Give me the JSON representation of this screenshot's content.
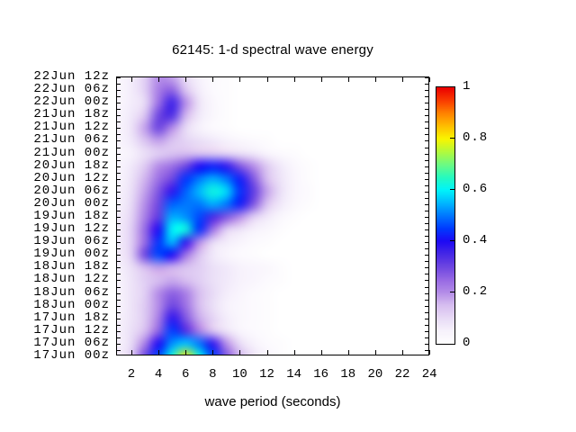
{
  "title": "62145: 1-d spectral wave energy",
  "xlabel": "wave period (seconds)",
  "colors": {
    "background": "#ffffff",
    "axis": "#000000",
    "text": "#000000"
  },
  "chart_data": {
    "type": "heatmap",
    "title": "62145: 1-d spectral wave energy",
    "xlabel": "wave period (seconds)",
    "x_range": [
      1,
      24
    ],
    "x_tick_labels": [
      2,
      4,
      6,
      8,
      10,
      12,
      14,
      16,
      18,
      20,
      22,
      24
    ],
    "periods": [
      1,
      2,
      3,
      4,
      5,
      6,
      7,
      8,
      9,
      10,
      11,
      12,
      13,
      14,
      15,
      16,
      17,
      18,
      19,
      20,
      21,
      22,
      23,
      24
    ],
    "rows": [
      "22Jun 12z",
      "22Jun 06z",
      "22Jun 00z",
      "21Jun 18z",
      "21Jun 12z",
      "21Jun 06z",
      "21Jun 00z",
      "20Jun 18z",
      "20Jun 12z",
      "20Jun 06z",
      "20Jun 00z",
      "19Jun 18z",
      "19Jun 12z",
      "19Jun 06z",
      "19Jun 00z",
      "18Jun 18z",
      "18Jun 12z",
      "18Jun 06z",
      "18Jun 00z",
      "17Jun 18z",
      "17Jun 12z",
      "17Jun 06z",
      "17Jun 00z"
    ],
    "values": [
      [
        0.03,
        0.06,
        0.12,
        0.2,
        0.18,
        0.1,
        0.05,
        0.02,
        0.01,
        0,
        0,
        0,
        0,
        0,
        0,
        0,
        0,
        0,
        0,
        0,
        0,
        0,
        0,
        0
      ],
      [
        0.03,
        0.06,
        0.12,
        0.22,
        0.26,
        0.14,
        0.06,
        0.02,
        0.01,
        0,
        0,
        0,
        0,
        0,
        0,
        0,
        0,
        0,
        0,
        0,
        0,
        0,
        0,
        0
      ],
      [
        0.03,
        0.06,
        0.1,
        0.24,
        0.36,
        0.2,
        0.08,
        0.03,
        0.01,
        0,
        0,
        0,
        0,
        0,
        0,
        0,
        0,
        0,
        0,
        0,
        0,
        0,
        0,
        0
      ],
      [
        0.04,
        0.07,
        0.14,
        0.3,
        0.34,
        0.16,
        0.07,
        0.03,
        0.01,
        0,
        0,
        0,
        0,
        0,
        0,
        0,
        0,
        0,
        0,
        0,
        0,
        0,
        0,
        0
      ],
      [
        0.04,
        0.08,
        0.18,
        0.3,
        0.2,
        0.1,
        0.05,
        0.02,
        0.01,
        0,
        0,
        0,
        0,
        0,
        0,
        0,
        0,
        0,
        0,
        0,
        0,
        0,
        0,
        0
      ],
      [
        0.04,
        0.07,
        0.14,
        0.18,
        0.14,
        0.11,
        0.09,
        0.07,
        0.05,
        0.03,
        0.02,
        0.01,
        0,
        0,
        0,
        0,
        0,
        0,
        0,
        0,
        0,
        0,
        0,
        0
      ],
      [
        0.03,
        0.05,
        0.09,
        0.12,
        0.14,
        0.15,
        0.14,
        0.13,
        0.11,
        0.09,
        0.07,
        0.04,
        0.02,
        0.01,
        0,
        0,
        0,
        0,
        0,
        0,
        0,
        0,
        0,
        0
      ],
      [
        0.04,
        0.07,
        0.13,
        0.2,
        0.24,
        0.3,
        0.4,
        0.42,
        0.38,
        0.28,
        0.2,
        0.13,
        0.07,
        0.03,
        0.01,
        0,
        0,
        0,
        0,
        0,
        0,
        0,
        0,
        0
      ],
      [
        0.04,
        0.08,
        0.16,
        0.24,
        0.3,
        0.44,
        0.5,
        0.54,
        0.5,
        0.42,
        0.28,
        0.15,
        0.08,
        0.04,
        0.01,
        0,
        0,
        0,
        0,
        0,
        0,
        0,
        0,
        0
      ],
      [
        0.05,
        0.09,
        0.18,
        0.28,
        0.38,
        0.48,
        0.55,
        0.62,
        0.58,
        0.44,
        0.32,
        0.18,
        0.09,
        0.04,
        0.02,
        0,
        0,
        0,
        0,
        0,
        0,
        0,
        0,
        0
      ],
      [
        0.05,
        0.1,
        0.2,
        0.3,
        0.48,
        0.5,
        0.5,
        0.54,
        0.5,
        0.42,
        0.28,
        0.14,
        0.07,
        0.03,
        0.01,
        0,
        0,
        0,
        0,
        0,
        0,
        0,
        0,
        0
      ],
      [
        0.06,
        0.11,
        0.22,
        0.32,
        0.54,
        0.52,
        0.46,
        0.35,
        0.28,
        0.2,
        0.12,
        0.07,
        0.03,
        0.01,
        0,
        0,
        0,
        0,
        0,
        0,
        0,
        0,
        0,
        0
      ],
      [
        0.06,
        0.12,
        0.25,
        0.4,
        0.6,
        0.62,
        0.44,
        0.24,
        0.12,
        0.08,
        0.05,
        0.03,
        0.01,
        0,
        0,
        0,
        0,
        0,
        0,
        0,
        0,
        0,
        0,
        0
      ],
      [
        0.06,
        0.12,
        0.25,
        0.44,
        0.55,
        0.38,
        0.2,
        0.1,
        0.06,
        0.04,
        0.02,
        0.01,
        0,
        0,
        0,
        0,
        0,
        0,
        0,
        0,
        0,
        0,
        0,
        0
      ],
      [
        0.06,
        0.12,
        0.3,
        0.46,
        0.4,
        0.24,
        0.14,
        0.07,
        0.04,
        0.02,
        0.01,
        0,
        0,
        0,
        0,
        0,
        0,
        0,
        0,
        0,
        0,
        0,
        0,
        0
      ],
      [
        0.05,
        0.09,
        0.15,
        0.18,
        0.16,
        0.14,
        0.12,
        0.09,
        0.07,
        0.05,
        0.04,
        0.03,
        0.01,
        0,
        0,
        0,
        0,
        0,
        0,
        0,
        0,
        0,
        0,
        0
      ],
      [
        0.04,
        0.08,
        0.12,
        0.15,
        0.17,
        0.15,
        0.12,
        0.09,
        0.07,
        0.05,
        0.04,
        0.02,
        0.01,
        0,
        0,
        0,
        0,
        0,
        0,
        0,
        0,
        0,
        0,
        0
      ],
      [
        0.04,
        0.08,
        0.12,
        0.2,
        0.26,
        0.22,
        0.15,
        0.1,
        0.06,
        0.04,
        0.02,
        0.01,
        0,
        0,
        0,
        0,
        0,
        0,
        0,
        0,
        0,
        0,
        0,
        0
      ],
      [
        0.04,
        0.08,
        0.13,
        0.2,
        0.3,
        0.24,
        0.15,
        0.09,
        0.05,
        0.03,
        0.02,
        0.01,
        0,
        0,
        0,
        0,
        0,
        0,
        0,
        0,
        0,
        0,
        0,
        0
      ],
      [
        0.05,
        0.08,
        0.13,
        0.22,
        0.38,
        0.28,
        0.17,
        0.11,
        0.06,
        0.03,
        0.02,
        0.01,
        0,
        0,
        0,
        0,
        0,
        0,
        0,
        0,
        0,
        0,
        0,
        0
      ],
      [
        0.05,
        0.09,
        0.15,
        0.26,
        0.45,
        0.34,
        0.22,
        0.14,
        0.08,
        0.04,
        0.02,
        0.01,
        0,
        0,
        0,
        0,
        0,
        0,
        0,
        0,
        0,
        0,
        0,
        0
      ],
      [
        0.05,
        0.1,
        0.22,
        0.4,
        0.52,
        0.56,
        0.5,
        0.38,
        0.2,
        0.1,
        0.05,
        0.02,
        0.01,
        0,
        0,
        0,
        0,
        0,
        0,
        0,
        0,
        0,
        0,
        0
      ],
      [
        0.06,
        0.12,
        0.3,
        0.46,
        0.62,
        0.82,
        0.62,
        0.46,
        0.28,
        0.16,
        0.08,
        0.04,
        0.01,
        0,
        0,
        0,
        0,
        0,
        0,
        0,
        0,
        0,
        0,
        0
      ]
    ],
    "colorbar": {
      "min": 0,
      "max": 1,
      "tick_values": [
        1,
        0.8,
        0.6,
        0.4,
        0.2,
        0
      ],
      "tick_labels": [
        "1",
        "0.8",
        "0.6",
        "0.4",
        "0.2",
        "0"
      ],
      "position": "right"
    },
    "palette_stops": [
      [
        0.0,
        "#ffffff"
      ],
      [
        0.05,
        "#f7f2fc"
      ],
      [
        0.1,
        "#e8dbf6"
      ],
      [
        0.15,
        "#d7bef0"
      ],
      [
        0.2,
        "#b48ce8"
      ],
      [
        0.25,
        "#9669e4"
      ],
      [
        0.3,
        "#6e46e1"
      ],
      [
        0.35,
        "#4628e6"
      ],
      [
        0.4,
        "#1e0af5"
      ],
      [
        0.45,
        "#003cff"
      ],
      [
        0.5,
        "#0078ff"
      ],
      [
        0.55,
        "#00b9ff"
      ],
      [
        0.6,
        "#00f5fa"
      ],
      [
        0.65,
        "#28fabe"
      ],
      [
        0.7,
        "#6efa82"
      ],
      [
        0.75,
        "#b4fa3c"
      ],
      [
        0.8,
        "#faf500"
      ],
      [
        0.85,
        "#ffbe00"
      ],
      [
        0.9,
        "#ff8200"
      ],
      [
        0.95,
        "#fa3c00"
      ],
      [
        1.0,
        "#eb0000"
      ]
    ],
    "grid": false,
    "legend_position": "none"
  }
}
